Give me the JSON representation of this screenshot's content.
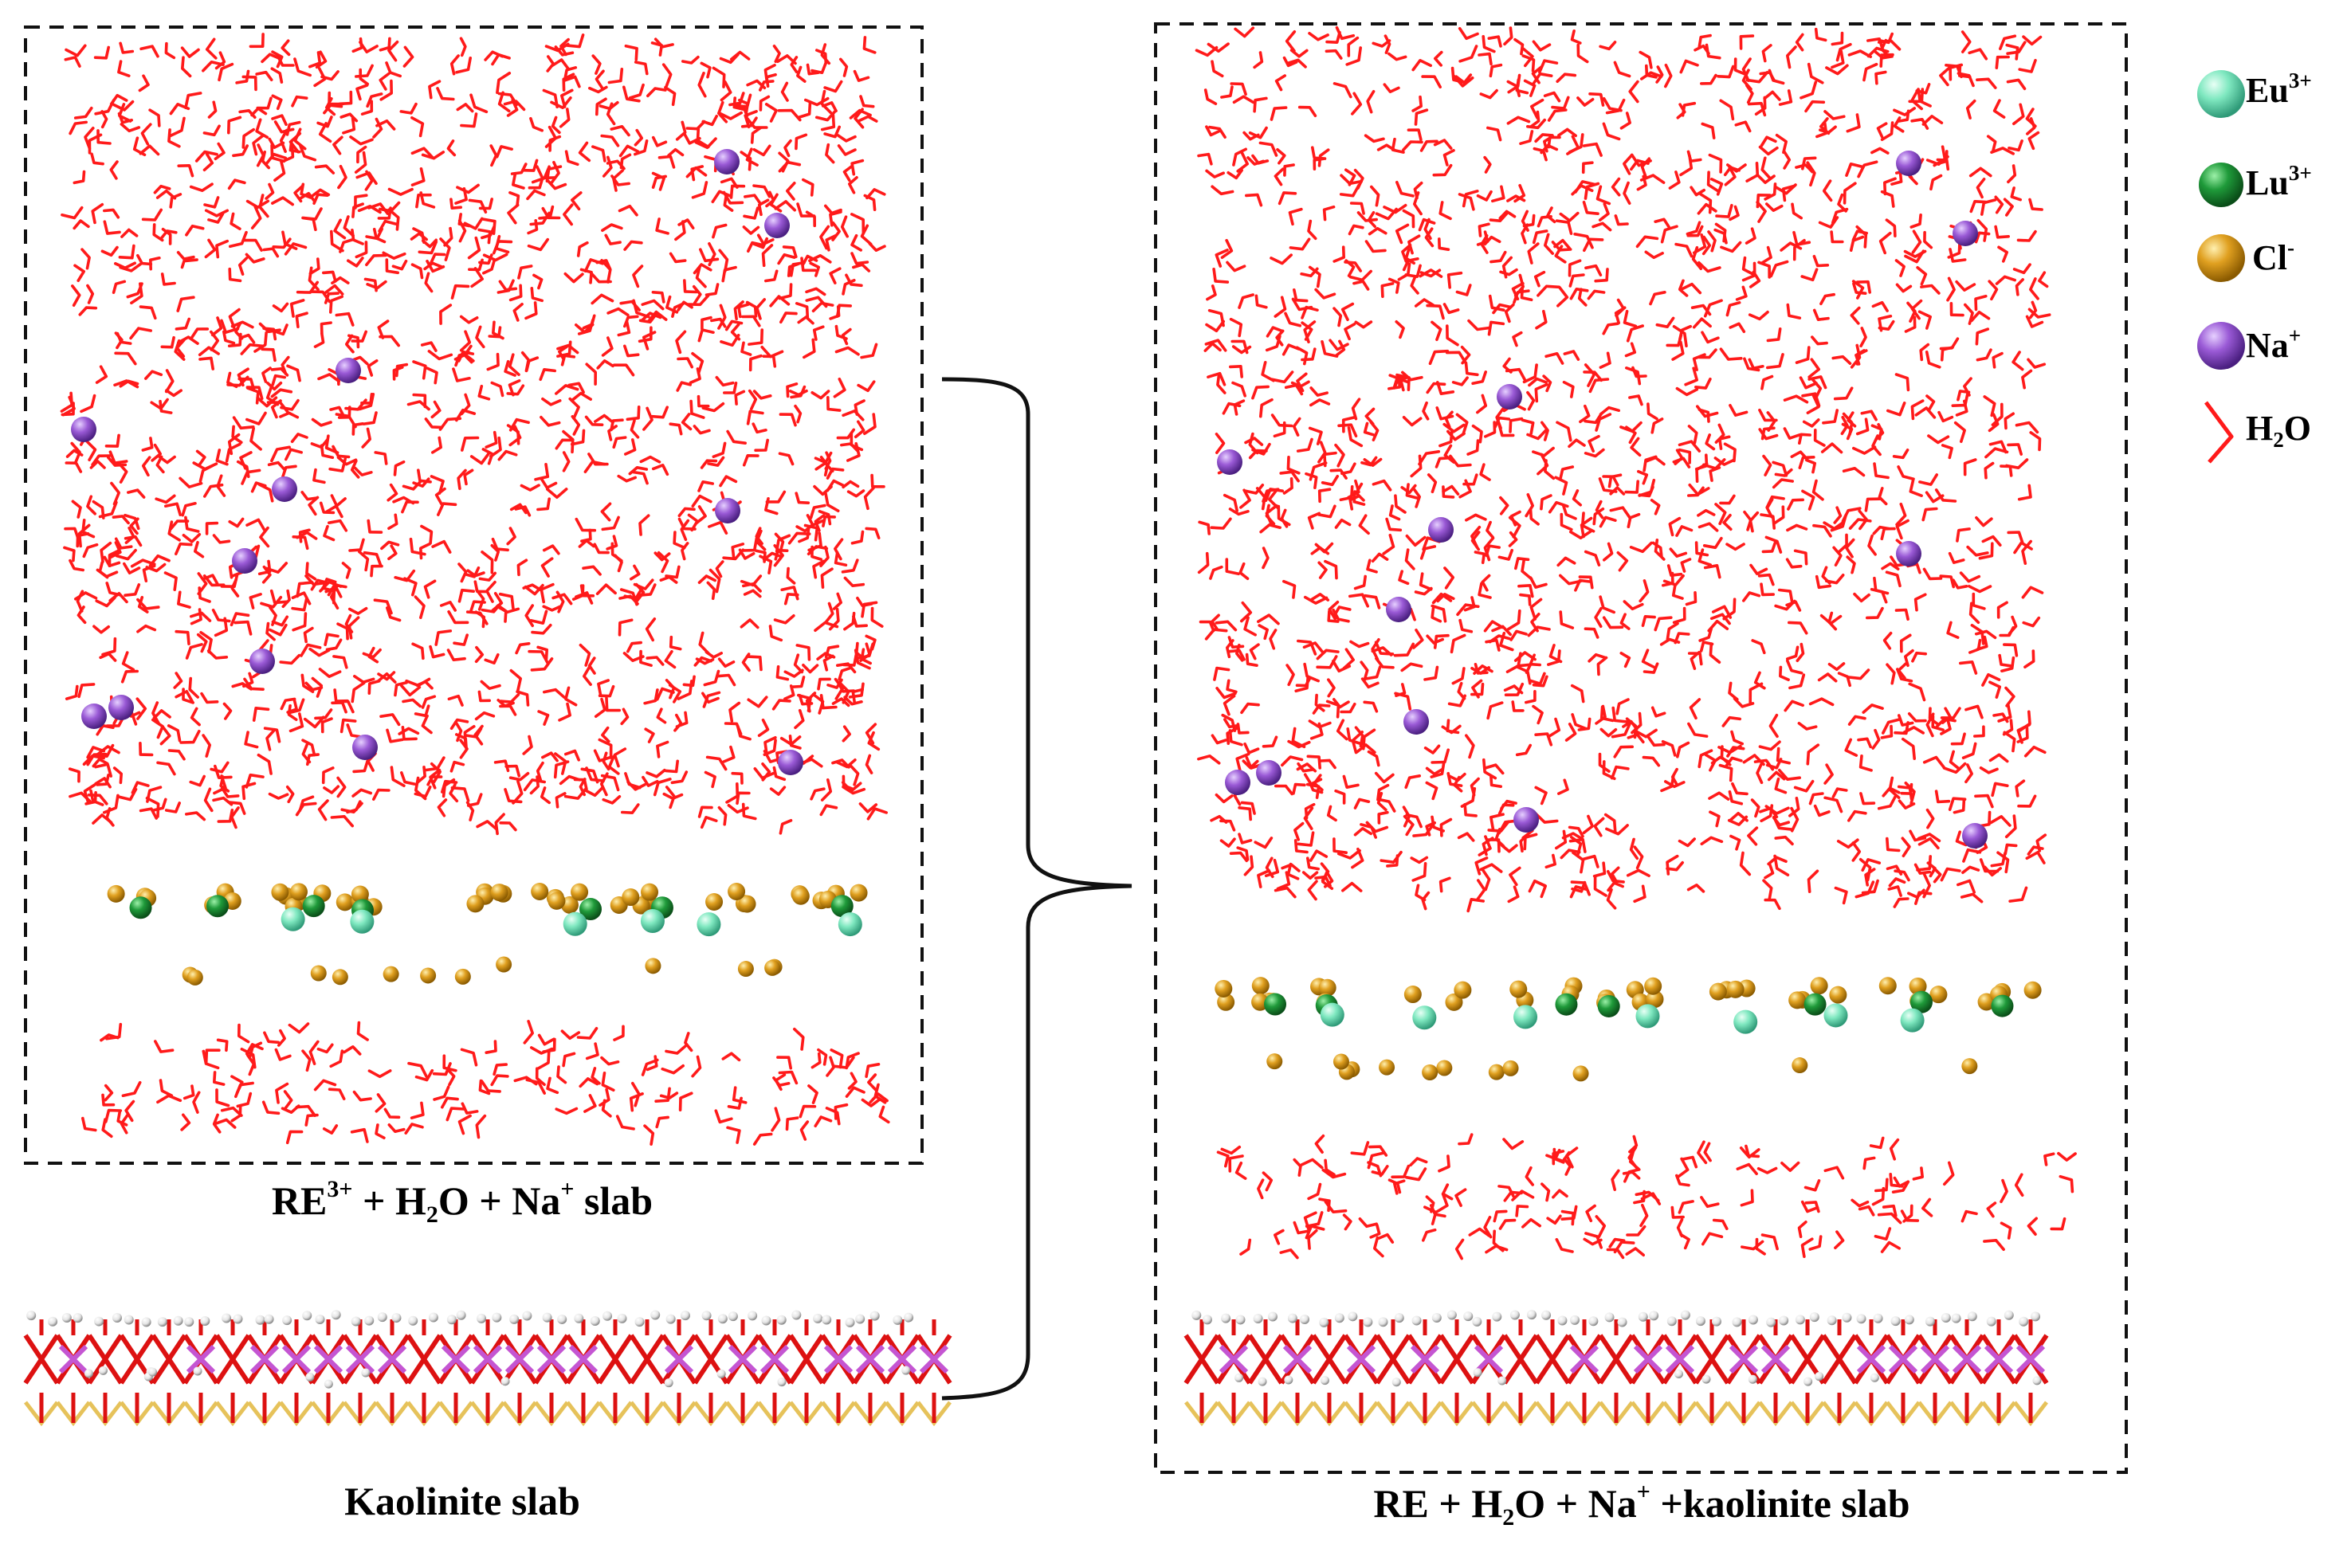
{
  "panels": {
    "left_box": {
      "caption": {
        "pre": "RE",
        "sup1": "3+",
        "mid1": " + H",
        "sub1": "2",
        "mid2": "O + Na",
        "sup2": "+",
        "post": " slab"
      }
    },
    "kaolinite": {
      "caption": "Kaolinite slab"
    },
    "right_box": {
      "caption": {
        "pre": "RE + H",
        "sub1": "2",
        "mid1": "O + Na",
        "sup1": "+",
        "post": " +kaolinite slab"
      }
    }
  },
  "legend": [
    {
      "base": "Eu",
      "sup": "3+",
      "color": "#7fe8c0"
    },
    {
      "base": "Lu",
      "sup": "3+",
      "color": "#1f9a3a"
    },
    {
      "base": "Cl",
      "sup": "-",
      "color": "#e0a020"
    },
    {
      "base": "Na",
      "sup": "+",
      "color": "#9a5ad6"
    },
    {
      "base": "H",
      "sub": "2",
      "post": "O",
      "color": "#ff2020"
    }
  ],
  "colors": {
    "water": "#ff1a1a",
    "na": "#9a5ad6",
    "eu": "#7fe8c0",
    "lu": "#1f9a3a",
    "cl": "#e0a020",
    "al": "#c455d2",
    "o": "#dd1111",
    "si": "#e6c25a",
    "h": "#f0f0f0"
  }
}
